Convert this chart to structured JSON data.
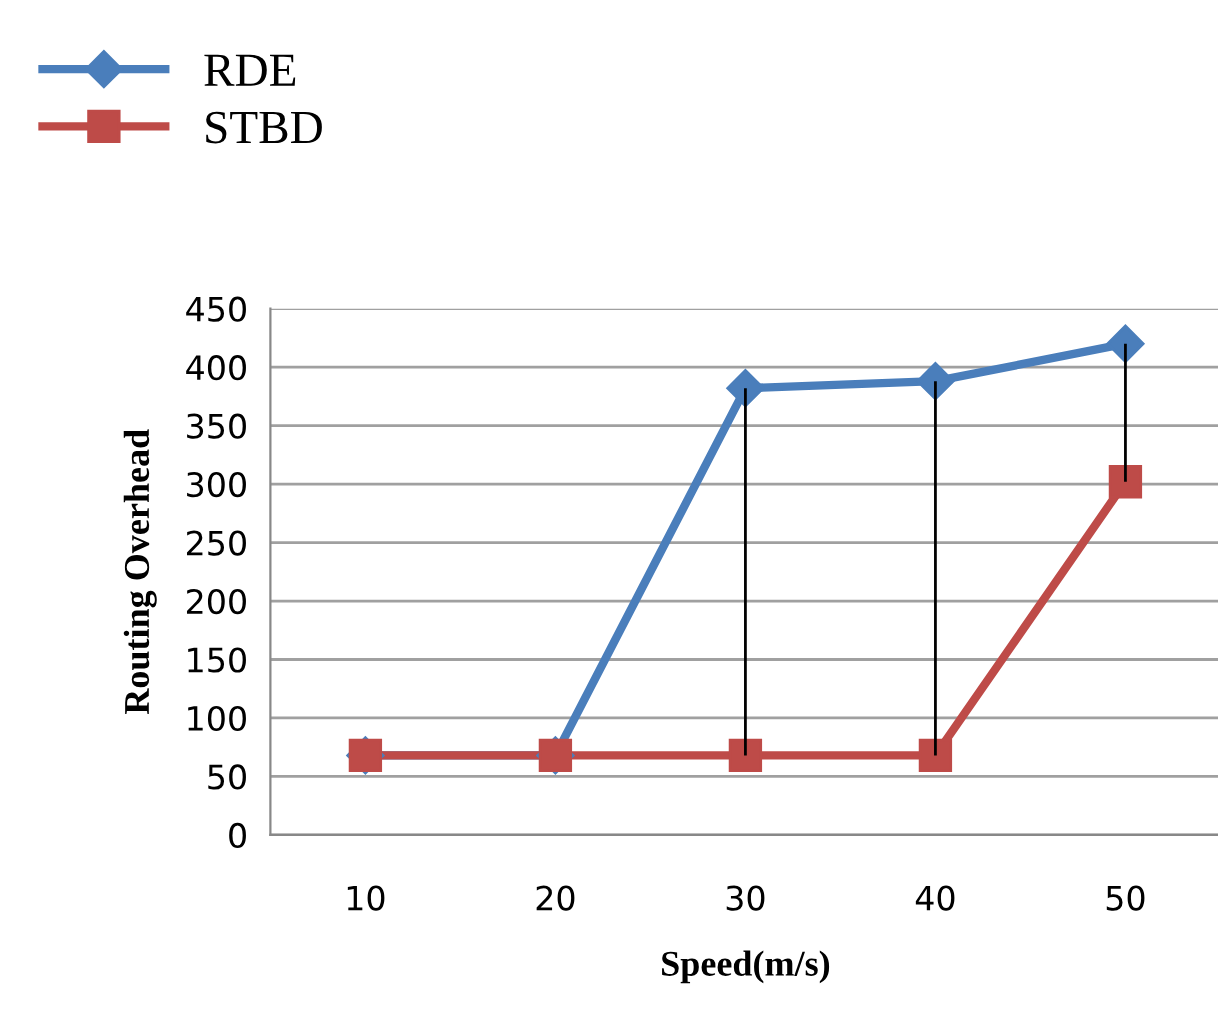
{
  "chart_data": {
    "type": "line",
    "xlabel": "Speed(m/s)",
    "ylabel": "Routing Overhead",
    "categories": [
      "10",
      "20",
      "30",
      "40",
      "50"
    ],
    "series": [
      {
        "name": "RDE",
        "color": "#4a7ebb",
        "marker": "diamond",
        "values": [
          68,
          68,
          382,
          388,
          420
        ],
        "errors": [
          null,
          null,
          [
            68,
            382
          ],
          [
            68,
            388
          ],
          [
            302,
            420
          ]
        ]
      },
      {
        "name": "STBD",
        "color": "#be4b48",
        "marker": "square",
        "values": [
          68,
          68,
          68,
          68,
          302
        ]
      }
    ],
    "ylim": [
      0,
      450
    ],
    "yticks": [
      0,
      50,
      100,
      150,
      200,
      250,
      300,
      350,
      400,
      450
    ],
    "grid": "y",
    "legend": "top left"
  }
}
